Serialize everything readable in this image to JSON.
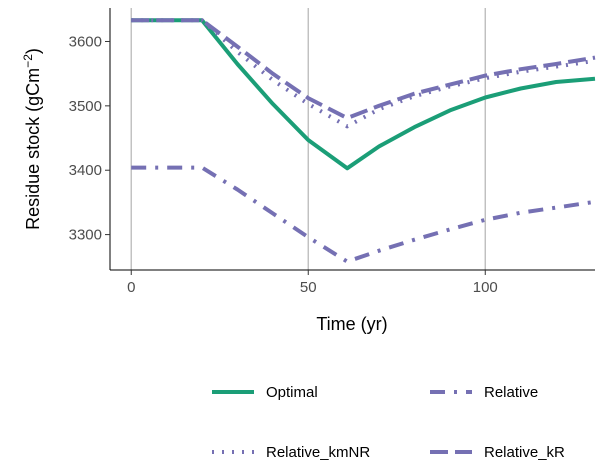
{
  "chart_data": {
    "type": "line",
    "xlabel": "Time (yr)",
    "ylabel": "Residue stock (gCm",
    "ylabel_sup": "−2",
    "ylabel_close": ")",
    "xlim": [
      -6,
      131
    ],
    "ylim": [
      3245,
      3652
    ],
    "x_ticks": [
      0,
      50,
      100
    ],
    "y_ticks": [
      3300,
      3400,
      3500,
      3600
    ],
    "grid": "vertical major gridlines",
    "legend_position": "bottom",
    "series": [
      {
        "name": "Optimal",
        "color": "#1b9e77",
        "dash": "solid",
        "points": [
          [
            0,
            3633
          ],
          [
            20,
            3633
          ],
          [
            30,
            3565
          ],
          [
            40,
            3503
          ],
          [
            50,
            3447
          ],
          [
            61,
            3403
          ],
          [
            70,
            3437
          ],
          [
            80,
            3467
          ],
          [
            90,
            3493
          ],
          [
            100,
            3513
          ],
          [
            110,
            3527
          ],
          [
            120,
            3537
          ],
          [
            131,
            3542
          ]
        ]
      },
      {
        "name": "Relative",
        "color": "#7570b3",
        "dash": "dashdot",
        "points": [
          [
            0,
            3404
          ],
          [
            20,
            3404
          ],
          [
            30,
            3370
          ],
          [
            40,
            3333
          ],
          [
            50,
            3296
          ],
          [
            61,
            3258
          ],
          [
            70,
            3275
          ],
          [
            80,
            3292
          ],
          [
            90,
            3308
          ],
          [
            100,
            3323
          ],
          [
            110,
            3334
          ],
          [
            120,
            3342
          ],
          [
            131,
            3351
          ]
        ]
      },
      {
        "name": "Relative_kmNR",
        "color": "#7570b3",
        "dash": "dotted",
        "points": [
          [
            0,
            3633
          ],
          [
            20,
            3633
          ],
          [
            30,
            3584
          ],
          [
            40,
            3540
          ],
          [
            50,
            3503
          ],
          [
            61,
            3468
          ],
          [
            70,
            3495
          ],
          [
            80,
            3515
          ],
          [
            90,
            3530
          ],
          [
            100,
            3543
          ],
          [
            110,
            3553
          ],
          [
            120,
            3561
          ],
          [
            131,
            3570
          ]
        ]
      },
      {
        "name": "Relative_kR",
        "color": "#7570b3",
        "dash": "dashed",
        "points": [
          [
            0,
            3633
          ],
          [
            20,
            3633
          ],
          [
            30,
            3592
          ],
          [
            40,
            3550
          ],
          [
            50,
            3512
          ],
          [
            61,
            3481
          ],
          [
            70,
            3500
          ],
          [
            80,
            3519
          ],
          [
            90,
            3533
          ],
          [
            100,
            3547
          ],
          [
            110,
            3557
          ],
          [
            120,
            3565
          ],
          [
            131,
            3575
          ]
        ]
      }
    ]
  }
}
